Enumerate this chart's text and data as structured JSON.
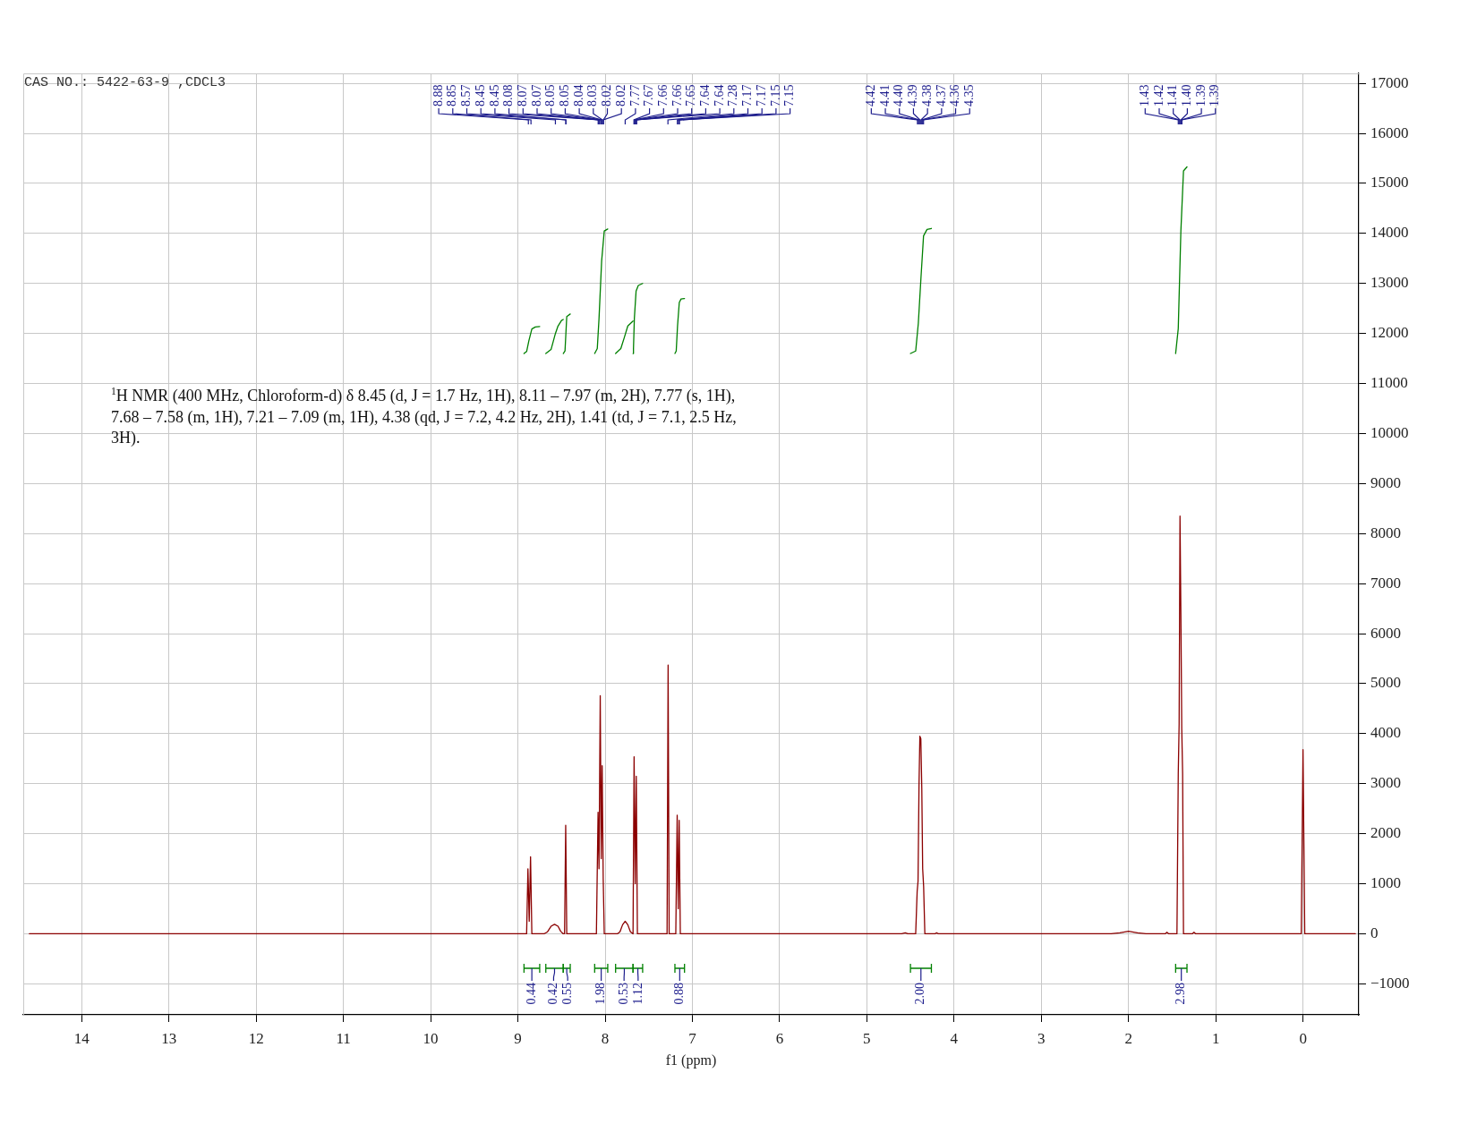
{
  "chart_data": {
    "type": "line",
    "title": "CAS NO.: 5422-63-9 ,CDCL3",
    "xlabel": "f1 (ppm)",
    "xlim": [
      14.67,
      -0.64
    ],
    "ylim": [
      -1620,
      17200
    ],
    "xticks": [
      14,
      13,
      12,
      11,
      10,
      9,
      8,
      7,
      6,
      5,
      4,
      3,
      2,
      1,
      0
    ],
    "yticks": [
      {
        "value": -1000,
        "label": "−1000"
      },
      0,
      1000,
      2000,
      3000,
      4000,
      5000,
      6000,
      7000,
      8000,
      9000,
      10000,
      11000,
      12000,
      13000,
      14000,
      15000,
      16000,
      17000
    ],
    "grid": true,
    "series": [
      {
        "color": "#8b0000",
        "x": [
          14.6,
          9.0,
          8.9,
          8.885,
          8.87,
          8.855,
          8.84,
          8.7,
          8.66,
          8.62,
          8.58,
          8.54,
          8.51,
          8.48,
          8.465,
          8.452,
          8.44,
          8.1,
          8.081,
          8.07,
          8.056,
          8.045,
          8.034,
          8.022,
          8.01,
          7.86,
          7.83,
          7.8,
          7.77,
          7.74,
          7.71,
          7.68,
          7.668,
          7.655,
          7.643,
          7.63,
          7.29,
          7.278,
          7.266,
          7.19,
          7.174,
          7.162,
          7.151,
          7.138,
          4.6,
          4.56,
          4.53,
          4.44,
          4.423,
          4.413,
          4.402,
          4.392,
          4.381,
          4.37,
          4.36,
          4.349,
          4.335,
          4.22,
          4.2,
          4.18,
          2.2,
          2.1,
          2.0,
          1.9,
          1.8,
          1.58,
          1.56,
          1.54,
          1.445,
          1.43,
          1.42,
          1.41,
          1.4,
          1.39,
          1.38,
          1.37,
          1.27,
          1.25,
          1.23,
          0.02,
          0.0,
          -0.02,
          -0.6
        ],
        "values": [
          0,
          0,
          0,
          1300,
          250,
          1540,
          0,
          0,
          40,
          150,
          190,
          150,
          50,
          0,
          0,
          2170,
          0,
          0,
          2430,
          1300,
          4760,
          1500,
          3360,
          1100,
          0,
          0,
          40,
          180,
          250,
          180,
          40,
          0,
          3540,
          1000,
          3150,
          0,
          0,
          5370,
          0,
          0,
          2370,
          500,
          2270,
          0,
          0,
          20,
          0,
          0,
          850,
          1050,
          2950,
          3950,
          3900,
          2900,
          1300,
          950,
          0,
          0,
          20,
          0,
          0,
          20,
          50,
          20,
          0,
          0,
          30,
          0,
          0,
          3200,
          4200,
          8350,
          6400,
          4100,
          3200,
          0,
          0,
          30,
          0,
          0,
          3680,
          0,
          0
        ]
      },
      {
        "color": "#008000",
        "x": [
          8.93,
          8.9,
          8.875,
          8.84,
          8.8,
          8.75
        ],
        "values": [
          11600,
          11640,
          11850,
          12090,
          12130,
          12140
        ]
      },
      {
        "color": "#008000",
        "x": [
          8.68,
          8.62,
          8.57,
          8.54,
          8.5,
          8.48
        ],
        "values": [
          11600,
          11680,
          12000,
          12150,
          12260,
          12280
        ]
      },
      {
        "color": "#008000",
        "x": [
          8.48,
          8.46,
          8.44,
          8.4
        ],
        "values": [
          11600,
          11650,
          12340,
          12390
        ]
      },
      {
        "color": "#008000",
        "x": [
          8.12,
          8.09,
          8.07,
          8.04,
          8.01,
          7.97
        ],
        "values": [
          11600,
          11700,
          12300,
          13450,
          14050,
          14090
        ]
      },
      {
        "color": "#008000",
        "x": [
          7.88,
          7.82,
          7.78,
          7.74,
          7.68
        ],
        "values": [
          11600,
          11700,
          11920,
          12150,
          12250
        ]
      },
      {
        "color": "#008000",
        "x": [
          7.68,
          7.675,
          7.665,
          7.645,
          7.62,
          7.57
        ],
        "values": [
          11600,
          11700,
          12300,
          12850,
          12960,
          13000
        ]
      },
      {
        "color": "#008000",
        "x": [
          7.2,
          7.185,
          7.17,
          7.15,
          7.13,
          7.09
        ],
        "values": [
          11600,
          11650,
          12150,
          12620,
          12690,
          12700
        ]
      },
      {
        "color": "#008000",
        "x": [
          4.5,
          4.44,
          4.41,
          4.38,
          4.35,
          4.31,
          4.26
        ],
        "values": [
          11600,
          11650,
          12200,
          13100,
          13950,
          14080,
          14100
        ]
      },
      {
        "color": "#008000",
        "x": [
          1.46,
          1.43,
          1.4,
          1.37,
          1.33
        ],
        "values": [
          11600,
          12100,
          14050,
          15250,
          15330
        ]
      }
    ],
    "annotations": [
      "$^{1}$H NMR (400 MHz, Chloroform-d) δ 8.45 (d, J = 1.7 Hz, 1H), 8.11 – 7.97 (m, 2H), 7.77 (s, 1H), 7.68 – 7.58 (m, 1H), 7.21 – 7.09 (m, 1H), 4.38 (qd, J = 7.2, 4.2 Hz, 2H), 1.41 (td, J = 7.1, 2.5 Hz, 3H).",
      "8.88",
      "8.85",
      "8.57",
      "8.45",
      "8.45",
      "8.08",
      "8.07",
      "8.07",
      "8.05",
      "8.05",
      "8.04",
      "8.03",
      "8.02",
      "8.02",
      "7.77",
      "7.67",
      "7.66",
      "7.66",
      "7.65",
      "7.64",
      "7.64",
      "7.28",
      "7.17",
      "7.17",
      "7.15",
      "7.15",
      "4.42",
      "4.41",
      "4.40",
      "4.39",
      "4.38",
      "4.37",
      "4.36",
      "4.35",
      "1.43",
      "1.42",
      "1.41",
      "1.40",
      "1.39",
      "1.39",
      "0.44",
      "0.42",
      "0.55",
      "1.98",
      "0.53",
      "1.12",
      "0.88",
      "2.00",
      "2.98"
    ]
  }
}
